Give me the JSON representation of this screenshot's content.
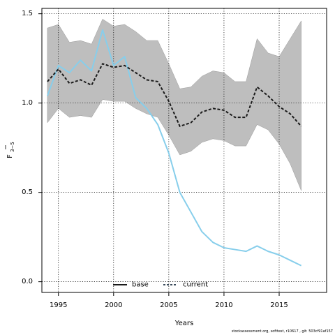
{
  "chart_data": {
    "type": "line",
    "xlabel": "Years",
    "ylabel_main": "F",
    "ylabel_sub": "3−5",
    "xlim": [
      1993.5,
      2019.3
    ],
    "ylim": [
      -0.06,
      1.53
    ],
    "xticks": [
      1995,
      2000,
      2005,
      2010,
      2015
    ],
    "yticks": [
      0.0,
      0.5,
      1.0,
      1.5
    ],
    "ytick_labels": [
      "0.0",
      "0.5",
      "1.0",
      "1.5"
    ],
    "grid": true,
    "legend_placement": "bottom-center",
    "years": [
      1994,
      1995,
      1996,
      1997,
      1998,
      1999,
      2000,
      2001,
      2002,
      2003,
      2004,
      2005,
      2006,
      2007,
      2008,
      2009,
      2010,
      2011,
      2012,
      2013,
      2014,
      2015,
      2016,
      2017
    ],
    "series": [
      {
        "name": "base",
        "color": "#1a1a1a",
        "values": [
          1.12,
          1.19,
          1.11,
          1.13,
          1.1,
          1.22,
          1.2,
          1.21,
          1.17,
          1.13,
          1.12,
          1.01,
          0.87,
          0.89,
          0.95,
          0.97,
          0.96,
          0.92,
          0.92,
          1.09,
          1.04,
          0.98,
          0.94,
          0.87
        ],
        "band_upper": [
          1.42,
          1.44,
          1.34,
          1.35,
          1.33,
          1.47,
          1.43,
          1.44,
          1.4,
          1.35,
          1.35,
          1.22,
          1.08,
          1.09,
          1.15,
          1.18,
          1.17,
          1.12,
          1.12,
          1.36,
          1.28,
          1.26,
          1.36,
          1.46
        ],
        "band_lower": [
          0.89,
          0.97,
          0.92,
          0.93,
          0.92,
          1.02,
          1.01,
          1.01,
          0.97,
          0.94,
          0.92,
          0.82,
          0.71,
          0.73,
          0.78,
          0.8,
          0.79,
          0.76,
          0.76,
          0.88,
          0.85,
          0.77,
          0.66,
          0.51
        ]
      },
      {
        "name": "current",
        "color": "#87ceeb",
        "values": [
          1.04,
          1.21,
          1.17,
          1.24,
          1.18,
          1.41,
          1.21,
          1.26,
          1.03,
          0.97,
          0.88,
          0.72,
          0.5,
          0.39,
          0.28,
          0.22,
          0.19,
          0.18,
          0.17,
          0.2,
          0.17,
          0.15,
          0.12,
          0.09
        ]
      }
    ],
    "band_color": "#bebebe"
  },
  "footer": {
    "text": "stockassessment.org, softtest, r10617 , git: 503cf91af157"
  }
}
